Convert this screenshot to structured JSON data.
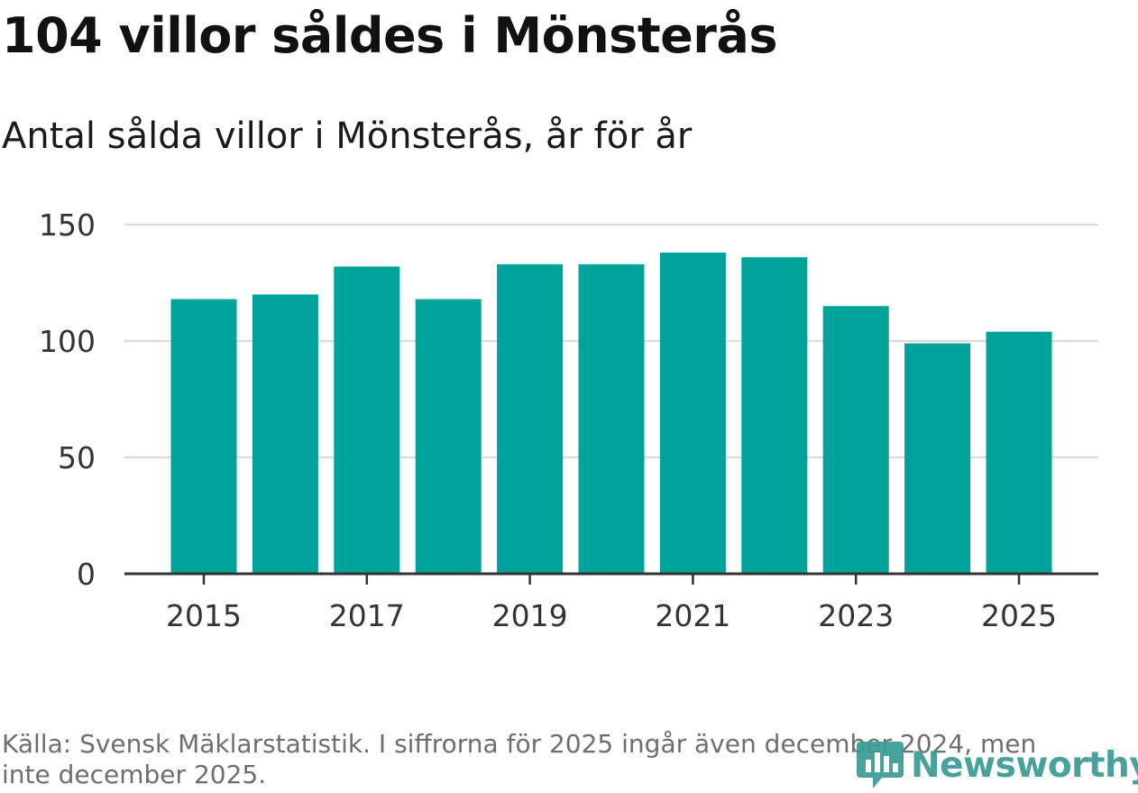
{
  "header": {
    "title": "104 villor såldes i Mönsterås",
    "subtitle": "Antal sålda villor i Mönsterås, år för år"
  },
  "footer": {
    "source": "Källa: Svensk Mäklarstatistik. I siffrorna för 2025 ingår även december 2024, men inte december 2025.",
    "brand": "Newsworthy"
  },
  "colors": {
    "bar": "#00a39a",
    "grid": "#dcdcdc",
    "axis": "#333333",
    "brand": "#3a9a93"
  },
  "chart_data": {
    "type": "bar",
    "title": "104 villor såldes i Mönsterås",
    "subtitle": "Antal sålda villor i Mönsterås, år för år",
    "xlabel": "",
    "ylabel": "",
    "categories": [
      "2015",
      "2016",
      "2017",
      "2018",
      "2019",
      "2020",
      "2021",
      "2022",
      "2023",
      "2024",
      "2025"
    ],
    "values": [
      118,
      120,
      132,
      118,
      133,
      133,
      138,
      136,
      115,
      99,
      104
    ],
    "ylim": [
      0,
      150
    ],
    "yticks": [
      0,
      50,
      100,
      150
    ],
    "xticks": [
      "2015",
      "2017",
      "2019",
      "2021",
      "2023",
      "2025"
    ],
    "grid": true,
    "legend": "none"
  }
}
